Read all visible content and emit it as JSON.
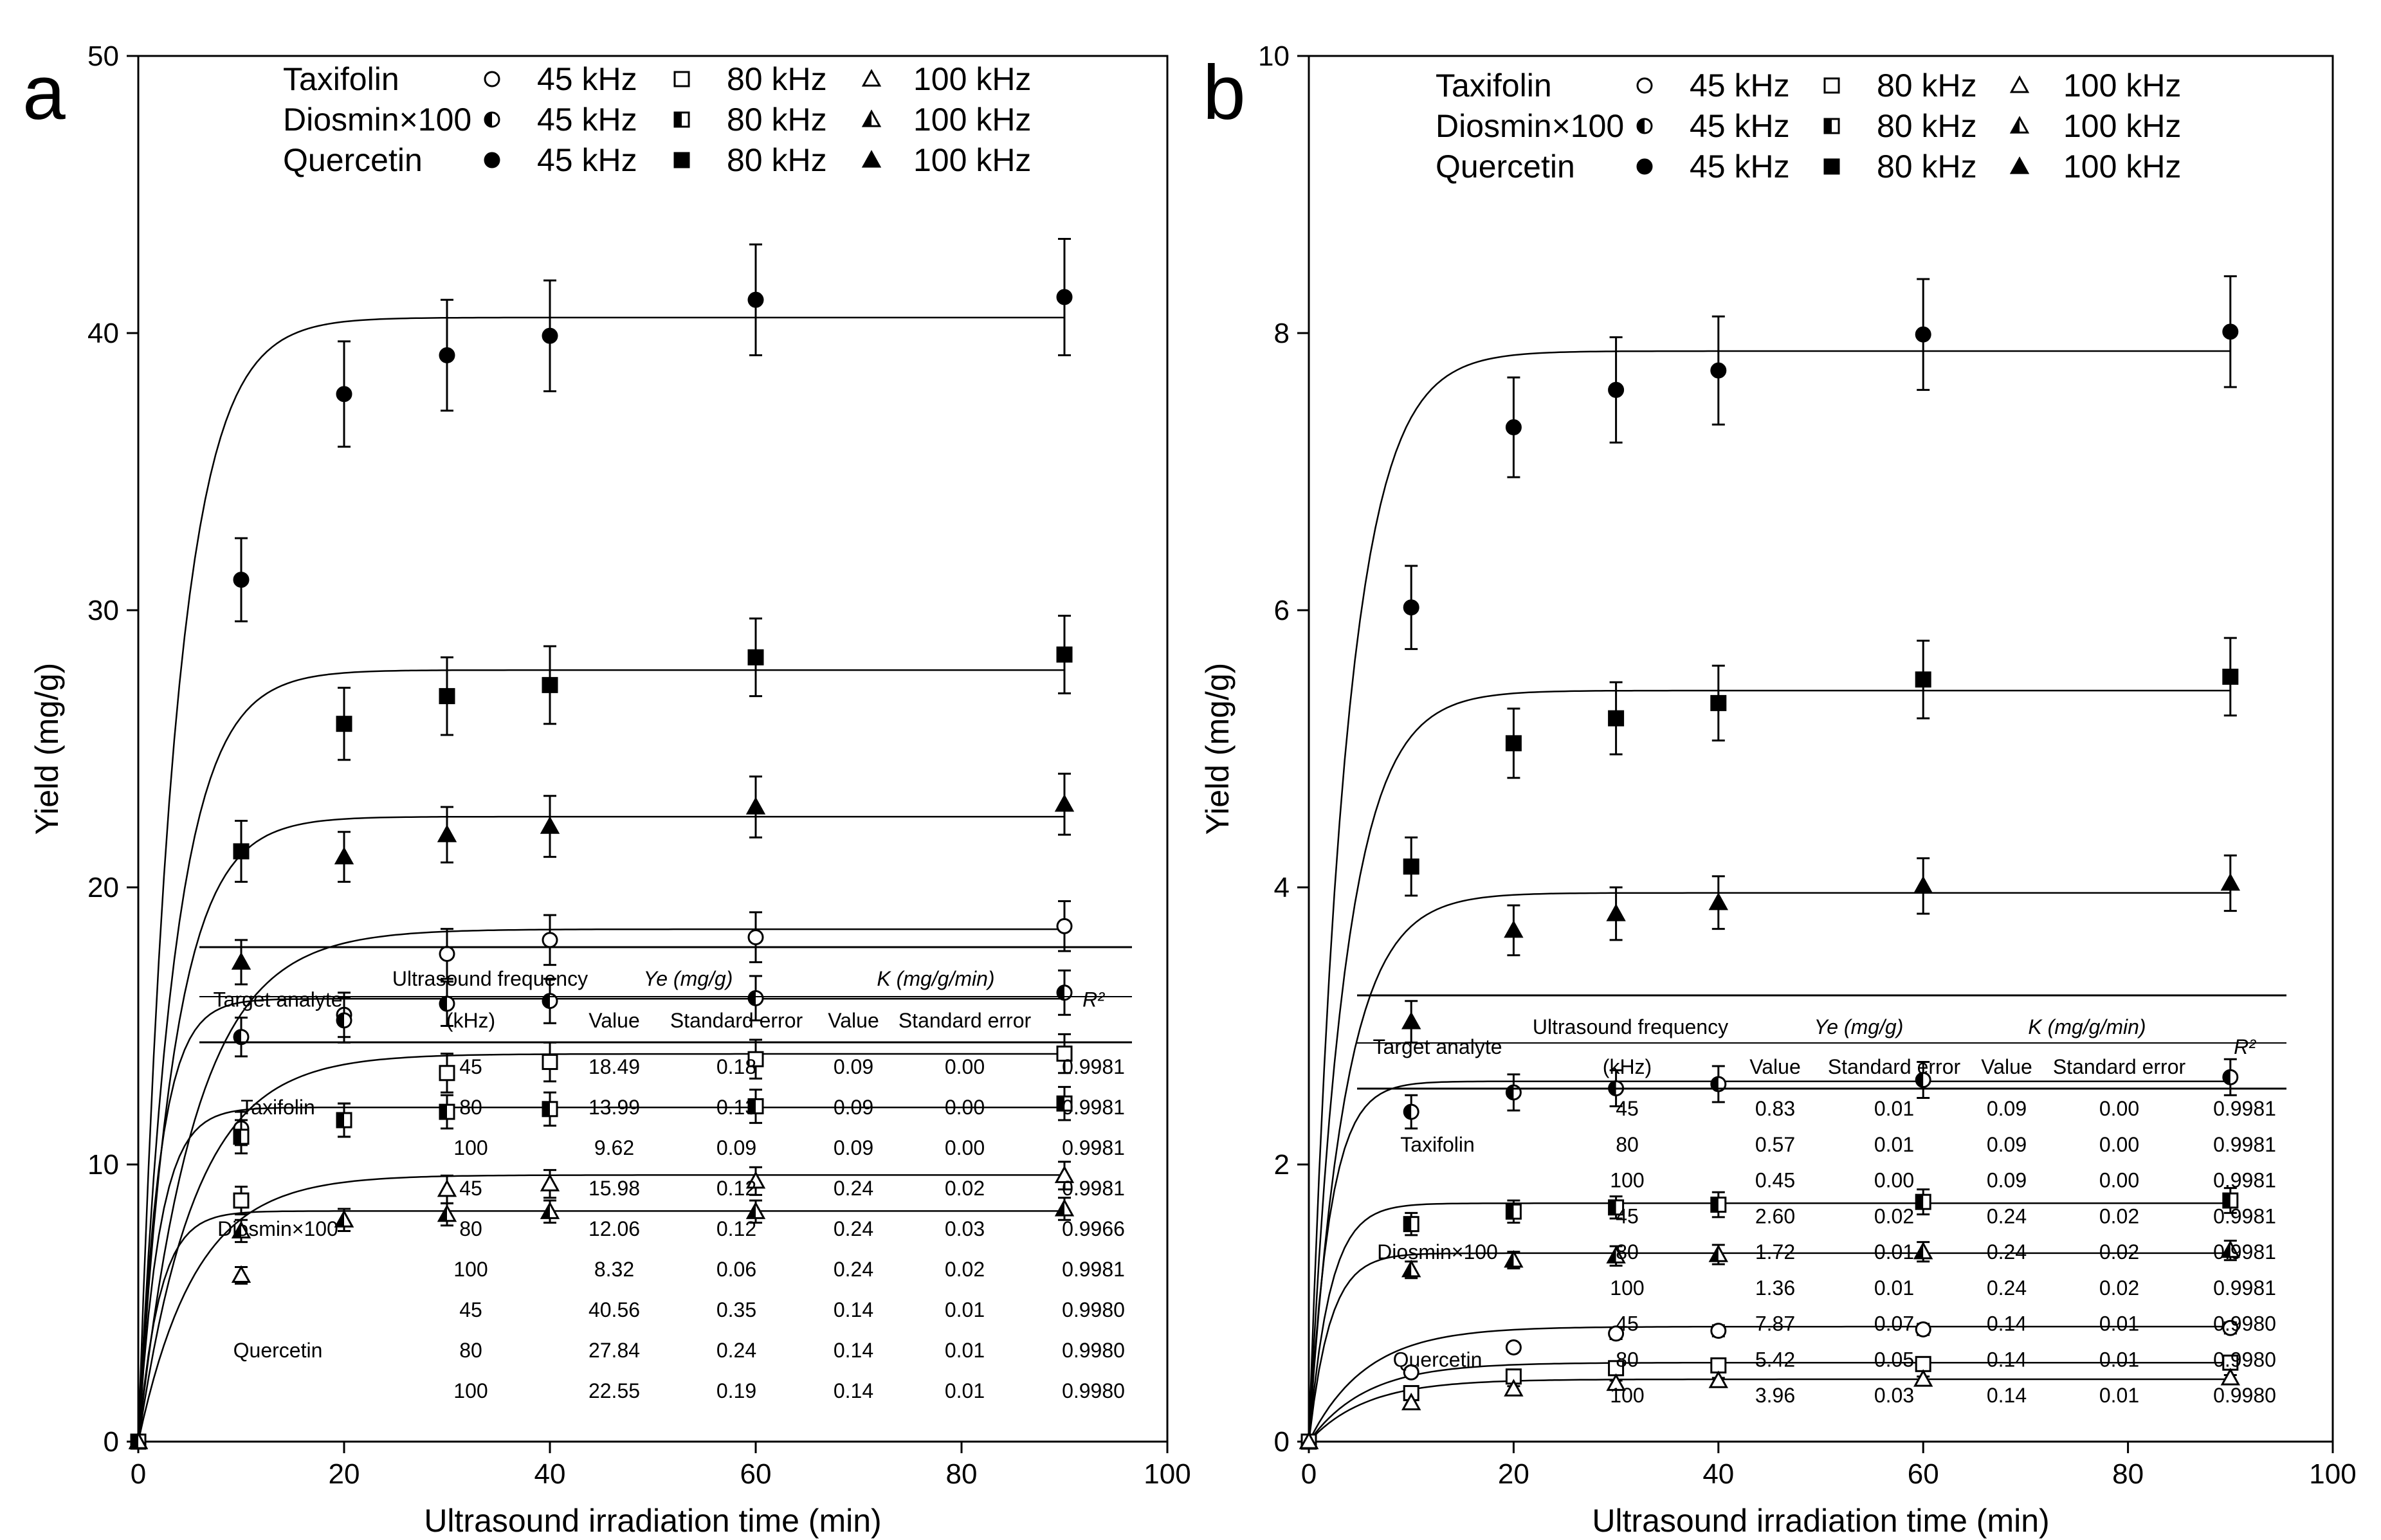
{
  "chart_data": [
    {
      "panel_letter": "a",
      "type": "scatter",
      "xlabel": "Ultrasound irradiation time (min)",
      "ylabel": "Yield (mg/g)",
      "xlim": [
        0,
        100
      ],
      "ylim": [
        0,
        50
      ],
      "xticks": [
        "0",
        "20",
        "40",
        "60",
        "80",
        "100"
      ],
      "yticks": [
        "0",
        "10",
        "20",
        "30",
        "40",
        "50"
      ],
      "x": [
        0,
        10,
        20,
        30,
        40,
        60,
        90
      ],
      "fit_line_end_x": 90,
      "legend": {
        "placement": "top-left",
        "rows": [
          {
            "compound": "Taxifolin",
            "items": [
              "45 kHz",
              "80 kHz",
              "100 kHz"
            ],
            "fill": "open"
          },
          {
            "compound": "Diosmin×100",
            "items": [
              "45 kHz",
              "80 kHz",
              "100 kHz"
            ],
            "fill": "half"
          },
          {
            "compound": "Quercetin",
            "items": [
              "45 kHz",
              "80 kHz",
              "100 kHz"
            ],
            "fill": "filled"
          }
        ]
      },
      "series": [
        {
          "compound": "Quercetin",
          "freq": "45 kHz",
          "marker": "circle",
          "fill": "filled",
          "ye": 40.56,
          "k": 0.14,
          "y": [
            0,
            31.1,
            37.8,
            39.2,
            39.9,
            41.2,
            41.3
          ],
          "err": [
            0,
            1.5,
            1.9,
            2.0,
            2.0,
            2.0,
            2.1
          ]
        },
        {
          "compound": "Quercetin",
          "freq": "80 kHz",
          "marker": "square",
          "fill": "filled",
          "ye": 27.84,
          "k": 0.14,
          "y": [
            0,
            21.3,
            25.9,
            26.9,
            27.3,
            28.3,
            28.4
          ],
          "err": [
            0,
            1.1,
            1.3,
            1.4,
            1.4,
            1.4,
            1.4
          ]
        },
        {
          "compound": "Quercetin",
          "freq": "100 kHz",
          "marker": "triangle",
          "fill": "filled",
          "ye": 22.55,
          "k": 0.14,
          "y": [
            0,
            17.3,
            21.1,
            21.9,
            22.2,
            22.9,
            23.0
          ],
          "err": [
            0,
            0.8,
            0.9,
            1.0,
            1.1,
            1.1,
            1.1
          ]
        },
        {
          "compound": "Taxifolin",
          "freq": "45 kHz",
          "marker": "circle",
          "fill": "open",
          "ye": 18.49,
          "k": 0.09,
          "y": [
            0,
            11.3,
            15.4,
            17.6,
            18.1,
            18.2,
            18.6
          ],
          "err": [
            0,
            0.6,
            0.8,
            0.9,
            0.9,
            0.9,
            0.9
          ]
        },
        {
          "compound": "Diosmin×100",
          "freq": "45 kHz",
          "marker": "circle",
          "fill": "half",
          "ye": 15.98,
          "k": 0.24,
          "y": [
            0,
            14.6,
            15.2,
            15.8,
            15.9,
            16.0,
            16.2
          ],
          "err": [
            0,
            0.7,
            0.8,
            0.8,
            0.8,
            0.8,
            0.8
          ]
        },
        {
          "compound": "Taxifolin",
          "freq": "80 kHz",
          "marker": "square",
          "fill": "open",
          "ye": 13.99,
          "k": 0.09,
          "y": [
            0,
            8.7,
            11.6,
            13.3,
            13.7,
            13.8,
            14.0
          ],
          "err": [
            0,
            0.5,
            0.6,
            0.7,
            0.7,
            0.7,
            0.7
          ]
        },
        {
          "compound": "Diosmin×100",
          "freq": "80 kHz",
          "marker": "square",
          "fill": "half",
          "ye": 12.06,
          "k": 0.24,
          "y": [
            0,
            11.0,
            11.6,
            11.9,
            12.0,
            12.1,
            12.2
          ],
          "err": [
            0,
            0.6,
            0.6,
            0.6,
            0.6,
            0.6,
            0.6
          ]
        },
        {
          "compound": "Taxifolin",
          "freq": "100 kHz",
          "marker": "triangle",
          "fill": "open",
          "ye": 9.62,
          "k": 0.09,
          "y": [
            0,
            6.0,
            8.0,
            9.1,
            9.3,
            9.4,
            9.6
          ],
          "err": [
            0,
            0.3,
            0.4,
            0.5,
            0.5,
            0.5,
            0.5
          ]
        },
        {
          "compound": "Diosmin×100",
          "freq": "100 kHz",
          "marker": "triangle",
          "fill": "half",
          "ye": 8.32,
          "k": 0.24,
          "y": [
            0,
            7.6,
            8.0,
            8.2,
            8.3,
            8.3,
            8.4
          ],
          "err": [
            0,
            0.4,
            0.4,
            0.4,
            0.4,
            0.4,
            0.4
          ]
        }
      ],
      "table": {
        "header_top": [
          "Target analyte",
          "Ultrasound frequency",
          "Ye (mg/g)",
          "K (mg/g/min)",
          "R²"
        ],
        "header_sub": [
          "(kHz)",
          "Value",
          "Standard error",
          "Value",
          "Standard error"
        ],
        "groups": [
          "Taxifolin",
          "Diosmin×100",
          "Quercetin"
        ],
        "rows": [
          [
            "45",
            "18.49",
            "0.18",
            "0.09",
            "0.00",
            "0.9981"
          ],
          [
            "80",
            "13.99",
            "0.13",
            "0.09",
            "0.00",
            "0.9981"
          ],
          [
            "100",
            "9.62",
            "0.09",
            "0.09",
            "0.00",
            "0.9981"
          ],
          [
            "45",
            "15.98",
            "0.12",
            "0.24",
            "0.02",
            "0.9981"
          ],
          [
            "80",
            "12.06",
            "0.12",
            "0.24",
            "0.03",
            "0.9966"
          ],
          [
            "100",
            "8.32",
            "0.06",
            "0.24",
            "0.02",
            "0.9981"
          ],
          [
            "45",
            "40.56",
            "0.35",
            "0.14",
            "0.01",
            "0.9980"
          ],
          [
            "80",
            "27.84",
            "0.24",
            "0.14",
            "0.01",
            "0.9980"
          ],
          [
            "100",
            "22.55",
            "0.19",
            "0.14",
            "0.01",
            "0.9980"
          ]
        ]
      }
    },
    {
      "panel_letter": "b",
      "type": "scatter",
      "xlabel": "Ultrasound irradiation time (min)",
      "ylabel": "Yield (mg/g)",
      "xlim": [
        0,
        100
      ],
      "ylim": [
        0,
        10
      ],
      "xticks": [
        "0",
        "20",
        "40",
        "60",
        "80",
        "100"
      ],
      "yticks": [
        "0",
        "2",
        "4",
        "6",
        "8",
        "10"
      ],
      "x": [
        0,
        10,
        20,
        30,
        40,
        60,
        90
      ],
      "fit_line_end_x": 90,
      "legend": {
        "placement": "top-left",
        "rows": [
          {
            "compound": "Taxifolin",
            "items": [
              "45 kHz",
              "80 kHz",
              "100 kHz"
            ],
            "fill": "open"
          },
          {
            "compound": "Diosmin×100",
            "items": [
              "45 kHz",
              "80 kHz",
              "100 kHz"
            ],
            "fill": "half"
          },
          {
            "compound": "Quercetin",
            "items": [
              "45 kHz",
              "80 kHz",
              "100 kHz"
            ],
            "fill": "filled"
          }
        ]
      },
      "series": [
        {
          "compound": "Quercetin",
          "freq": "45 kHz",
          "marker": "circle",
          "fill": "filled",
          "ye": 7.87,
          "k": 0.14,
          "y": [
            0,
            6.02,
            7.32,
            7.59,
            7.73,
            7.99,
            8.01
          ],
          "err": [
            0,
            0.3,
            0.36,
            0.38,
            0.39,
            0.4,
            0.4
          ]
        },
        {
          "compound": "Quercetin",
          "freq": "80 kHz",
          "marker": "square",
          "fill": "filled",
          "ye": 5.42,
          "k": 0.14,
          "y": [
            0,
            4.15,
            5.04,
            5.22,
            5.33,
            5.5,
            5.52
          ],
          "err": [
            0,
            0.21,
            0.25,
            0.26,
            0.27,
            0.28,
            0.28
          ]
        },
        {
          "compound": "Quercetin",
          "freq": "100 kHz",
          "marker": "triangle",
          "fill": "filled",
          "ye": 3.96,
          "k": 0.14,
          "y": [
            0,
            3.03,
            3.69,
            3.81,
            3.89,
            4.01,
            4.03
          ],
          "err": [
            0,
            0.15,
            0.18,
            0.19,
            0.19,
            0.2,
            0.2
          ]
        },
        {
          "compound": "Diosmin×100",
          "freq": "45 kHz",
          "marker": "circle",
          "fill": "half",
          "ye": 2.6,
          "k": 0.24,
          "y": [
            0,
            2.38,
            2.52,
            2.55,
            2.58,
            2.61,
            2.63
          ],
          "err": [
            0,
            0.12,
            0.13,
            0.13,
            0.13,
            0.13,
            0.13
          ]
        },
        {
          "compound": "Diosmin×100",
          "freq": "80 kHz",
          "marker": "square",
          "fill": "half",
          "ye": 1.72,
          "k": 0.24,
          "y": [
            0,
            1.57,
            1.66,
            1.69,
            1.71,
            1.73,
            1.74
          ],
          "err": [
            0,
            0.08,
            0.08,
            0.08,
            0.09,
            0.09,
            0.09
          ]
        },
        {
          "compound": "Diosmin×100",
          "freq": "100 kHz",
          "marker": "triangle",
          "fill": "half",
          "ye": 1.36,
          "k": 0.24,
          "y": [
            0,
            1.24,
            1.31,
            1.34,
            1.35,
            1.37,
            1.38
          ],
          "err": [
            0,
            0.06,
            0.06,
            0.07,
            0.07,
            0.07,
            0.07
          ]
        },
        {
          "compound": "Taxifolin",
          "freq": "45 kHz",
          "marker": "circle",
          "fill": "open",
          "ye": 0.83,
          "k": 0.09,
          "y": [
            0,
            0.5,
            0.68,
            0.78,
            0.8,
            0.81,
            0.82
          ],
          "err": [
            0,
            0.03,
            0.03,
            0.04,
            0.04,
            0.04,
            0.04
          ]
        },
        {
          "compound": "Taxifolin",
          "freq": "80 kHz",
          "marker": "square",
          "fill": "open",
          "ye": 0.57,
          "k": 0.09,
          "y": [
            0,
            0.35,
            0.47,
            0.53,
            0.55,
            0.56,
            0.57
          ],
          "err": [
            0,
            0.02,
            0.02,
            0.03,
            0.03,
            0.03,
            0.03
          ]
        },
        {
          "compound": "Taxifolin",
          "freq": "100 kHz",
          "marker": "triangle",
          "fill": "open",
          "ye": 0.45,
          "k": 0.09,
          "y": [
            0,
            0.28,
            0.38,
            0.42,
            0.44,
            0.45,
            0.46
          ],
          "err": [
            0,
            0.02,
            0.02,
            0.02,
            0.02,
            0.02,
            0.02
          ]
        }
      ],
      "table": {
        "header_top": [
          "Target analyte",
          "Ultrasound frequency",
          "Ye (mg/g)",
          "K (mg/g/min)",
          "R²"
        ],
        "header_sub": [
          "(kHz)",
          "Value",
          "Standard error",
          "Value",
          "Standard error"
        ],
        "groups": [
          "Taxifolin",
          "Diosmin×100",
          "Quercetin"
        ],
        "rows": [
          [
            "45",
            "0.83",
            "0.01",
            "0.09",
            "0.00",
            "0.9981"
          ],
          [
            "80",
            "0.57",
            "0.01",
            "0.09",
            "0.00",
            "0.9981"
          ],
          [
            "100",
            "0.45",
            "0.00",
            "0.09",
            "0.00",
            "0.9981"
          ],
          [
            "45",
            "2.60",
            "0.02",
            "0.24",
            "0.02",
            "0.9981"
          ],
          [
            "80",
            "1.72",
            "0.01",
            "0.24",
            "0.02",
            "0.9981"
          ],
          [
            "100",
            "1.36",
            "0.01",
            "0.24",
            "0.02",
            "0.9981"
          ],
          [
            "45",
            "7.87",
            "0.07",
            "0.14",
            "0.01",
            "0.9980"
          ],
          [
            "80",
            "5.42",
            "0.05",
            "0.14",
            "0.01",
            "0.9980"
          ],
          [
            "100",
            "3.96",
            "0.03",
            "0.14",
            "0.01",
            "0.9980"
          ]
        ]
      }
    }
  ]
}
